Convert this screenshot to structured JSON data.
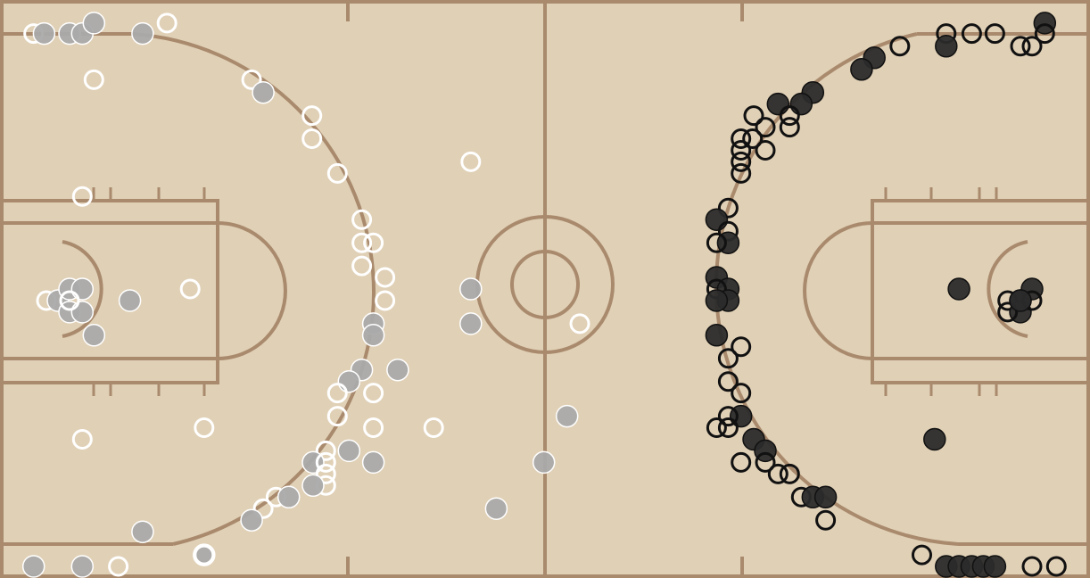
{
  "chart_data": {
    "type": "scatter",
    "x_range": [
      0,
      94
    ],
    "y_range": [
      0,
      50
    ],
    "court_color": "#e0d0b6",
    "line_color": "#a98a6d",
    "series": [
      {
        "team": "left-side",
        "fill_made": "#aaaaaa",
        "stroke": "#ffffff",
        "points": [
          {
            "x": 2.9,
            "y": 47.1,
            "made": false
          },
          {
            "x": 3.8,
            "y": 47.1,
            "made": true
          },
          {
            "x": 6.0,
            "y": 47.1,
            "made": true
          },
          {
            "x": 7.1,
            "y": 47.1,
            "made": true
          },
          {
            "x": 8.1,
            "y": 48.0,
            "made": true
          },
          {
            "x": 12.3,
            "y": 47.1,
            "made": true
          },
          {
            "x": 14.4,
            "y": 48.0,
            "made": false
          },
          {
            "x": 8.1,
            "y": 43.1,
            "made": false
          },
          {
            "x": 21.7,
            "y": 43.1,
            "made": false
          },
          {
            "x": 22.7,
            "y": 42.0,
            "made": true
          },
          {
            "x": 26.9,
            "y": 40.0,
            "made": false
          },
          {
            "x": 26.9,
            "y": 38.0,
            "made": false
          },
          {
            "x": 29.1,
            "y": 35.0,
            "made": false
          },
          {
            "x": 40.6,
            "y": 36.0,
            "made": false
          },
          {
            "x": 7.1,
            "y": 33.0,
            "made": false
          },
          {
            "x": 31.2,
            "y": 31.0,
            "made": false
          },
          {
            "x": 31.2,
            "y": 29.0,
            "made": false
          },
          {
            "x": 32.2,
            "y": 29.0,
            "made": false
          },
          {
            "x": 31.2,
            "y": 27.0,
            "made": false
          },
          {
            "x": 33.2,
            "y": 26.0,
            "made": false
          },
          {
            "x": 33.2,
            "y": 24.0,
            "made": false
          },
          {
            "x": 16.4,
            "y": 25.0,
            "made": false
          },
          {
            "x": 11.2,
            "y": 24.0,
            "made": true
          },
          {
            "x": 40.6,
            "y": 25.0,
            "made": true
          },
          {
            "x": 4.0,
            "y": 24.0,
            "made": false
          },
          {
            "x": 5.0,
            "y": 24.0,
            "made": true
          },
          {
            "x": 6.0,
            "y": 25.0,
            "made": true
          },
          {
            "x": 7.1,
            "y": 25.0,
            "made": true
          },
          {
            "x": 6.0,
            "y": 23.0,
            "made": true
          },
          {
            "x": 7.1,
            "y": 23.0,
            "made": true
          },
          {
            "x": 6.0,
            "y": 24.0,
            "made": false
          },
          {
            "x": 8.1,
            "y": 21.0,
            "made": true
          },
          {
            "x": 32.2,
            "y": 22.0,
            "made": true
          },
          {
            "x": 32.2,
            "y": 21.0,
            "made": true
          },
          {
            "x": 40.6,
            "y": 22.0,
            "made": true
          },
          {
            "x": 50.0,
            "y": 22.0,
            "made": false
          },
          {
            "x": 31.2,
            "y": 18.0,
            "made": true
          },
          {
            "x": 34.3,
            "y": 18.0,
            "made": true
          },
          {
            "x": 30.1,
            "y": 17.0,
            "made": true
          },
          {
            "x": 29.1,
            "y": 16.0,
            "made": false
          },
          {
            "x": 32.2,
            "y": 16.0,
            "made": false
          },
          {
            "x": 29.1,
            "y": 14.0,
            "made": false
          },
          {
            "x": 37.4,
            "y": 13.0,
            "made": false
          },
          {
            "x": 32.2,
            "y": 13.0,
            "made": false
          },
          {
            "x": 17.6,
            "y": 13.0,
            "made": false
          },
          {
            "x": 7.1,
            "y": 12.0,
            "made": false
          },
          {
            "x": 48.9,
            "y": 14.0,
            "made": true
          },
          {
            "x": 28.1,
            "y": 11.0,
            "made": false
          },
          {
            "x": 30.1,
            "y": 11.0,
            "made": true
          },
          {
            "x": 27.0,
            "y": 10.0,
            "made": true
          },
          {
            "x": 32.2,
            "y": 10.0,
            "made": true
          },
          {
            "x": 28.1,
            "y": 10.0,
            "made": false
          },
          {
            "x": 28.1,
            "y": 9.0,
            "made": false
          },
          {
            "x": 28.1,
            "y": 8.0,
            "made": false
          },
          {
            "x": 27.0,
            "y": 8.0,
            "made": true
          },
          {
            "x": 46.9,
            "y": 10.0,
            "made": true
          },
          {
            "x": 23.8,
            "y": 7.0,
            "made": false
          },
          {
            "x": 24.9,
            "y": 7.0,
            "made": true
          },
          {
            "x": 22.7,
            "y": 6.0,
            "made": false
          },
          {
            "x": 21.7,
            "y": 5.0,
            "made": true
          },
          {
            "x": 42.8,
            "y": 6.0,
            "made": true
          },
          {
            "x": 12.3,
            "y": 4.0,
            "made": true
          },
          {
            "x": 17.6,
            "y": 2.0,
            "made": true
          },
          {
            "x": 17.6,
            "y": 2.0,
            "made": false
          },
          {
            "x": 2.9,
            "y": 1.0,
            "made": true
          },
          {
            "x": 7.1,
            "y": 1.0,
            "made": true
          },
          {
            "x": 10.2,
            "y": 1.0,
            "made": false
          }
        ]
      },
      {
        "team": "right-side",
        "fill_made": "#2b2b2b",
        "stroke": "#111111",
        "points": [
          {
            "x": 90.1,
            "y": 48.0,
            "made": true
          },
          {
            "x": 90.1,
            "y": 47.1,
            "made": false
          },
          {
            "x": 81.6,
            "y": 47.1,
            "made": false
          },
          {
            "x": 83.8,
            "y": 47.1,
            "made": false
          },
          {
            "x": 85.8,
            "y": 47.1,
            "made": false
          },
          {
            "x": 88.0,
            "y": 46.0,
            "made": false
          },
          {
            "x": 89.0,
            "y": 46.0,
            "made": false
          },
          {
            "x": 81.6,
            "y": 46.0,
            "made": true
          },
          {
            "x": 77.6,
            "y": 46.0,
            "made": false
          },
          {
            "x": 75.4,
            "y": 45.0,
            "made": true
          },
          {
            "x": 74.3,
            "y": 44.0,
            "made": true
          },
          {
            "x": 70.1,
            "y": 42.0,
            "made": true
          },
          {
            "x": 67.1,
            "y": 41.0,
            "made": true
          },
          {
            "x": 69.1,
            "y": 41.0,
            "made": true
          },
          {
            "x": 68.1,
            "y": 40.0,
            "made": false
          },
          {
            "x": 65.0,
            "y": 40.0,
            "made": false
          },
          {
            "x": 66.0,
            "y": 39.0,
            "made": false
          },
          {
            "x": 68.1,
            "y": 39.0,
            "made": false
          },
          {
            "x": 63.9,
            "y": 38.0,
            "made": false
          },
          {
            "x": 64.9,
            "y": 38.0,
            "made": false
          },
          {
            "x": 66.0,
            "y": 37.0,
            "made": false
          },
          {
            "x": 63.9,
            "y": 37.0,
            "made": false
          },
          {
            "x": 63.9,
            "y": 36.0,
            "made": false
          },
          {
            "x": 63.9,
            "y": 35.0,
            "made": false
          },
          {
            "x": 62.8,
            "y": 32.0,
            "made": false
          },
          {
            "x": 61.8,
            "y": 31.0,
            "made": true
          },
          {
            "x": 62.8,
            "y": 30.0,
            "made": false
          },
          {
            "x": 62.8,
            "y": 29.0,
            "made": true
          },
          {
            "x": 61.8,
            "y": 29.0,
            "made": false
          },
          {
            "x": 61.8,
            "y": 26.0,
            "made": true
          },
          {
            "x": 62.8,
            "y": 25.0,
            "made": true
          },
          {
            "x": 61.8,
            "y": 25.0,
            "made": false
          },
          {
            "x": 62.8,
            "y": 24.0,
            "made": true
          },
          {
            "x": 61.8,
            "y": 24.0,
            "made": true
          },
          {
            "x": 61.8,
            "y": 21.0,
            "made": true
          },
          {
            "x": 63.9,
            "y": 20.0,
            "made": false
          },
          {
            "x": 62.8,
            "y": 19.0,
            "made": false
          },
          {
            "x": 62.8,
            "y": 17.0,
            "made": false
          },
          {
            "x": 63.9,
            "y": 16.0,
            "made": false
          },
          {
            "x": 63.9,
            "y": 14.0,
            "made": true
          },
          {
            "x": 62.8,
            "y": 14.0,
            "made": false
          },
          {
            "x": 61.8,
            "y": 13.0,
            "made": false
          },
          {
            "x": 62.8,
            "y": 13.0,
            "made": false
          },
          {
            "x": 65.0,
            "y": 12.0,
            "made": true
          },
          {
            "x": 66.0,
            "y": 11.0,
            "made": true
          },
          {
            "x": 63.9,
            "y": 10.0,
            "made": false
          },
          {
            "x": 66.0,
            "y": 10.0,
            "made": false
          },
          {
            "x": 67.1,
            "y": 9.0,
            "made": false
          },
          {
            "x": 68.1,
            "y": 9.0,
            "made": false
          },
          {
            "x": 69.1,
            "y": 7.0,
            "made": false
          },
          {
            "x": 70.1,
            "y": 7.0,
            "made": true
          },
          {
            "x": 71.2,
            "y": 7.0,
            "made": true
          },
          {
            "x": 71.2,
            "y": 5.0,
            "made": false
          },
          {
            "x": 82.7,
            "y": 25.0,
            "made": true
          },
          {
            "x": 88.0,
            "y": 24.0,
            "made": true
          },
          {
            "x": 89.0,
            "y": 25.0,
            "made": true
          },
          {
            "x": 86.9,
            "y": 24.0,
            "made": false
          },
          {
            "x": 88.0,
            "y": 23.0,
            "made": true
          },
          {
            "x": 86.9,
            "y": 23.0,
            "made": false
          },
          {
            "x": 89.0,
            "y": 24.0,
            "made": false
          },
          {
            "x": 88.0,
            "y": 24.0,
            "made": true
          },
          {
            "x": 80.6,
            "y": 12.0,
            "made": true
          },
          {
            "x": 79.5,
            "y": 2.0,
            "made": false
          },
          {
            "x": 81.6,
            "y": 1.0,
            "made": true
          },
          {
            "x": 82.7,
            "y": 1.0,
            "made": true
          },
          {
            "x": 83.8,
            "y": 1.0,
            "made": true
          },
          {
            "x": 84.8,
            "y": 1.0,
            "made": true
          },
          {
            "x": 85.8,
            "y": 1.0,
            "made": true
          },
          {
            "x": 89.0,
            "y": 1.0,
            "made": false
          },
          {
            "x": 91.1,
            "y": 1.0,
            "made": false
          }
        ]
      }
    ]
  }
}
